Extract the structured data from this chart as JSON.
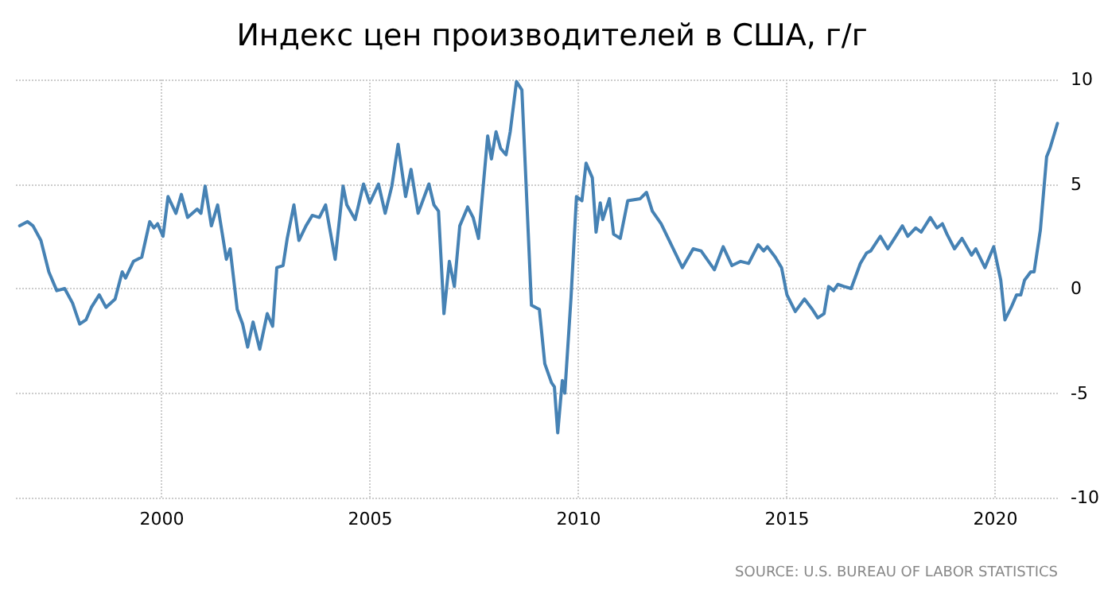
{
  "chart_data": {
    "type": "line",
    "title": "Индекс цен производителей в США, г/г",
    "annotations": [
      "SOURCE: U.S. BUREAU OF LABOR STATISTICS"
    ],
    "x": [
      1996.59,
      1996.78,
      1996.91,
      1997.1,
      1997.29,
      1997.48,
      1997.67,
      1997.86,
      1998.03,
      1998.18,
      1998.31,
      1998.5,
      1998.66,
      1998.88,
      1999.05,
      1999.13,
      1999.32,
      1999.52,
      1999.71,
      1999.81,
      1999.9,
      2000.03,
      2000.15,
      2000.34,
      2000.47,
      2000.62,
      2000.85,
      2000.94,
      2001.04,
      2001.19,
      2001.34,
      2001.55,
      2001.64,
      2001.81,
      2001.94,
      2002.06,
      2002.19,
      2002.35,
      2002.53,
      2002.66,
      2002.76,
      2002.91,
      2003.01,
      2003.17,
      2003.29,
      2003.46,
      2003.61,
      2003.78,
      2003.93,
      2004.16,
      2004.35,
      2004.44,
      2004.64,
      2004.84,
      2004.99,
      2005.2,
      2005.36,
      2005.52,
      2005.67,
      2005.85,
      2005.98,
      2006.15,
      2006.41,
      2006.53,
      2006.64,
      2006.77,
      2006.9,
      2007.02,
      2007.15,
      2007.34,
      2007.47,
      2007.6,
      2007.82,
      2007.91,
      2008.02,
      2008.13,
      2008.26,
      2008.36,
      2008.51,
      2008.64,
      2008.87,
      2009.06,
      2009.19,
      2009.35,
      2009.42,
      2009.5,
      2009.61,
      2009.67,
      2009.82,
      2009.95,
      2010.08,
      2010.18,
      2010.33,
      2010.42,
      2010.52,
      2010.58,
      2010.74,
      2010.84,
      2011.0,
      2011.18,
      2011.48,
      2011.63,
      2011.77,
      2011.98,
      2012.49,
      2012.75,
      2012.94,
      2013.26,
      2013.47,
      2013.68,
      2013.89,
      2014.08,
      2014.31,
      2014.44,
      2014.53,
      2014.72,
      2014.87,
      2015.0,
      2015.2,
      2015.42,
      2015.61,
      2015.74,
      2015.89,
      2016.0,
      2016.12,
      2016.22,
      2016.37,
      2016.54,
      2016.76,
      2016.91,
      2017.01,
      2017.24,
      2017.42,
      2017.58,
      2017.77,
      2017.9,
      2018.09,
      2018.22,
      2018.44,
      2018.6,
      2018.73,
      2018.84,
      2019.02,
      2019.2,
      2019.43,
      2019.53,
      2019.75,
      2019.96,
      2020.13,
      2020.23,
      2020.38,
      2020.51,
      2020.61,
      2020.7,
      2020.85,
      2020.93,
      2021.08,
      2021.23,
      2021.31,
      2021.49
    ],
    "series": [
      {
        "color": "#4682b4",
        "values": [
          3.0,
          3.2,
          3.0,
          2.3,
          0.8,
          -0.1,
          0.0,
          -0.7,
          -1.7,
          -1.5,
          -0.9,
          -0.3,
          -0.9,
          -0.5,
          0.8,
          0.5,
          1.3,
          1.5,
          3.2,
          2.9,
          3.1,
          2.5,
          4.4,
          3.6,
          4.5,
          3.4,
          3.8,
          3.6,
          4.9,
          3.0,
          4.0,
          1.4,
          1.9,
          -1.0,
          -1.7,
          -2.8,
          -1.6,
          -2.9,
          -1.2,
          -1.8,
          1.0,
          1.1,
          2.4,
          4.0,
          2.3,
          3.0,
          3.5,
          3.4,
          4.0,
          1.4,
          4.9,
          4.0,
          3.3,
          5.0,
          4.1,
          5.0,
          3.6,
          4.9,
          6.9,
          4.4,
          5.7,
          3.6,
          5.0,
          4.0,
          3.7,
          -1.2,
          1.3,
          0.1,
          3.0,
          3.9,
          3.4,
          2.4,
          7.3,
          6.2,
          7.5,
          6.7,
          6.4,
          7.5,
          9.9,
          9.5,
          -0.8,
          -1.0,
          -3.6,
          -4.5,
          -4.7,
          -6.9,
          -4.4,
          -5.0,
          -0.4,
          4.4,
          4.2,
          6.0,
          5.3,
          2.7,
          4.1,
          3.3,
          4.3,
          2.6,
          2.4,
          4.2,
          4.3,
          4.6,
          3.7,
          3.1,
          1.0,
          1.9,
          1.8,
          0.9,
          2.0,
          1.1,
          1.3,
          1.2,
          2.1,
          1.8,
          2.0,
          1.5,
          1.0,
          -0.3,
          -1.1,
          -0.5,
          -1.0,
          -1.4,
          -1.2,
          0.1,
          -0.1,
          0.2,
          0.1,
          0.0,
          1.2,
          1.7,
          1.8,
          2.5,
          1.9,
          2.4,
          3.0,
          2.5,
          2.9,
          2.7,
          3.4,
          2.9,
          3.1,
          2.6,
          1.9,
          2.4,
          1.6,
          1.9,
          1.0,
          2.0,
          0.4,
          -1.5,
          -0.9,
          -0.3,
          -0.3,
          0.4,
          0.8,
          0.8,
          2.8,
          6.3,
          6.7,
          7.9
        ]
      }
    ],
    "xlim": [
      1996.5,
      2021.5
    ],
    "xticks": [
      2000,
      2005,
      2010,
      2015,
      2020
    ],
    "ylim": [
      -10,
      10
    ],
    "yticks": [
      -10,
      -5,
      0,
      5,
      10
    ],
    "grid": true,
    "line_style": "solid",
    "marker": "none"
  }
}
